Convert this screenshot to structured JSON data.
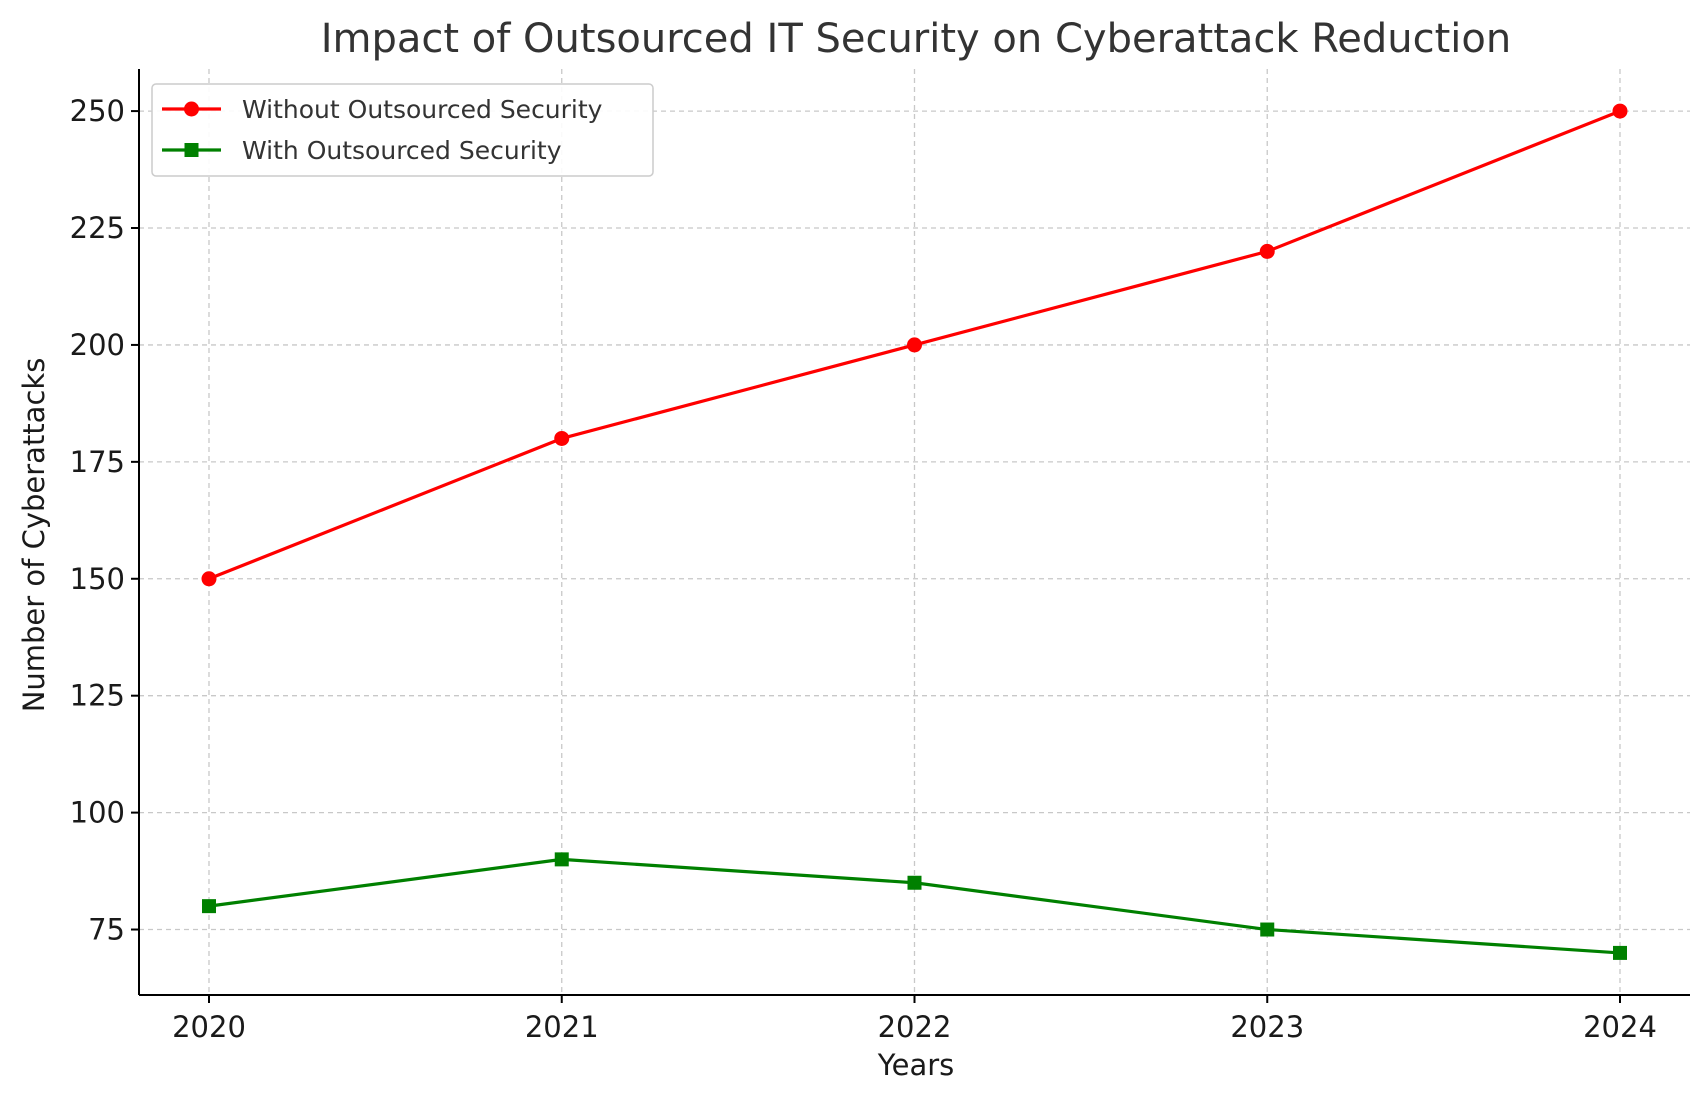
{
  "chart_data": {
    "type": "line",
    "title": "Impact of Outsourced IT Security on Cyberattack Reduction",
    "xlabel": "Years",
    "ylabel": "Number of Cyberattacks",
    "categories": [
      "2020",
      "2021",
      "2022",
      "2023",
      "2024"
    ],
    "yticks": [
      75,
      100,
      125,
      150,
      175,
      200,
      225,
      250
    ],
    "ylim": [
      61,
      259
    ],
    "grid": true,
    "legend_position": "top-left",
    "series": [
      {
        "name": "Without Outsourced Security",
        "values": [
          150,
          180,
          200,
          220,
          250
        ],
        "color": "#ff0000",
        "marker": "circle"
      },
      {
        "name": "With Outsourced Security",
        "values": [
          80,
          90,
          85,
          75,
          70
        ],
        "color": "#008000",
        "marker": "square"
      }
    ]
  }
}
